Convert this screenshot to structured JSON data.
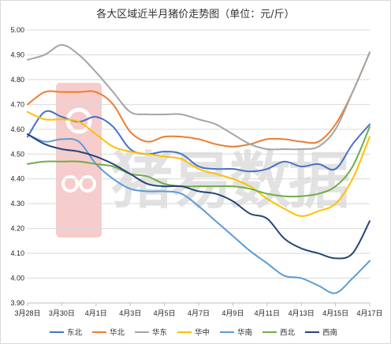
{
  "chart_data": {
    "type": "line",
    "title": "各大区域近半月猪价走势图（单位：元/斤）",
    "watermark": "猪易数据",
    "x": [
      "3月28日",
      "3月29日",
      "3月30日",
      "3月31日",
      "4月1日",
      "4月2日",
      "4月3日",
      "4月4日",
      "4月5日",
      "4月6日",
      "4月7日",
      "4月8日",
      "4月9日",
      "4月10日",
      "4月11日",
      "4月12日",
      "4月13日",
      "4月14日",
      "4月15日",
      "4月16日",
      "4月17日"
    ],
    "x_tick_labels": [
      "3月28日",
      "3月30日",
      "4月1日",
      "4月3日",
      "4月5日",
      "4月7日",
      "4月9日",
      "4月11日",
      "4月13日",
      "4月15日",
      "4月17日"
    ],
    "ylim": [
      3.9,
      5.0
    ],
    "y_ticks": [
      "3.90",
      "4.00",
      "4.10",
      "4.20",
      "4.30",
      "4.40",
      "4.50",
      "4.60",
      "4.70",
      "4.80",
      "4.90",
      "5.00"
    ],
    "grid": true,
    "legend_position": "bottom",
    "series": [
      {
        "name": "东北",
        "color": "#4472c4",
        "values": [
          4.57,
          4.67,
          4.65,
          4.63,
          4.65,
          4.61,
          4.52,
          4.5,
          4.51,
          4.5,
          4.45,
          4.44,
          4.44,
          4.43,
          4.44,
          4.47,
          4.45,
          4.46,
          4.44,
          4.54,
          4.62
        ]
      },
      {
        "name": "华北",
        "color": "#ed7d31",
        "values": [
          4.7,
          4.75,
          4.75,
          4.75,
          4.75,
          4.7,
          4.59,
          4.55,
          4.57,
          4.57,
          4.56,
          4.54,
          4.53,
          4.54,
          4.56,
          4.56,
          4.55,
          4.55,
          4.62,
          4.75,
          4.91
        ]
      },
      {
        "name": "华东",
        "color": "#a5a5a5",
        "values": [
          4.88,
          4.9,
          4.94,
          4.9,
          4.83,
          4.75,
          4.67,
          4.66,
          4.66,
          4.66,
          4.64,
          4.62,
          4.58,
          4.54,
          4.52,
          4.52,
          4.52,
          4.53,
          4.6,
          4.75,
          4.91
        ]
      },
      {
        "name": "华中",
        "color": "#ffc000",
        "values": [
          4.67,
          4.64,
          4.64,
          4.63,
          4.58,
          4.53,
          4.51,
          4.5,
          4.49,
          4.48,
          4.44,
          4.42,
          4.4,
          4.37,
          4.32,
          4.28,
          4.25,
          4.27,
          4.3,
          4.4,
          4.57
        ]
      },
      {
        "name": "华南",
        "color": "#5b9bd5",
        "values": [
          4.58,
          4.55,
          4.56,
          4.55,
          4.46,
          4.4,
          4.36,
          4.35,
          4.35,
          4.34,
          4.29,
          4.23,
          4.17,
          4.11,
          4.06,
          4.01,
          4.0,
          3.97,
          3.94,
          4.0,
          4.07
        ]
      },
      {
        "name": "西北",
        "color": "#70ad47",
        "values": [
          4.46,
          4.47,
          4.47,
          4.47,
          4.46,
          4.45,
          4.42,
          4.41,
          4.38,
          4.37,
          4.37,
          4.37,
          4.37,
          4.36,
          4.34,
          4.33,
          4.33,
          4.34,
          4.37,
          4.45,
          4.61
        ]
      },
      {
        "name": "西南",
        "color": "#264478",
        "values": [
          4.58,
          4.54,
          4.52,
          4.51,
          4.49,
          4.46,
          4.42,
          4.38,
          4.37,
          4.37,
          4.35,
          4.34,
          4.31,
          4.26,
          4.24,
          4.16,
          4.12,
          4.1,
          4.08,
          4.1,
          4.23
        ]
      }
    ]
  }
}
